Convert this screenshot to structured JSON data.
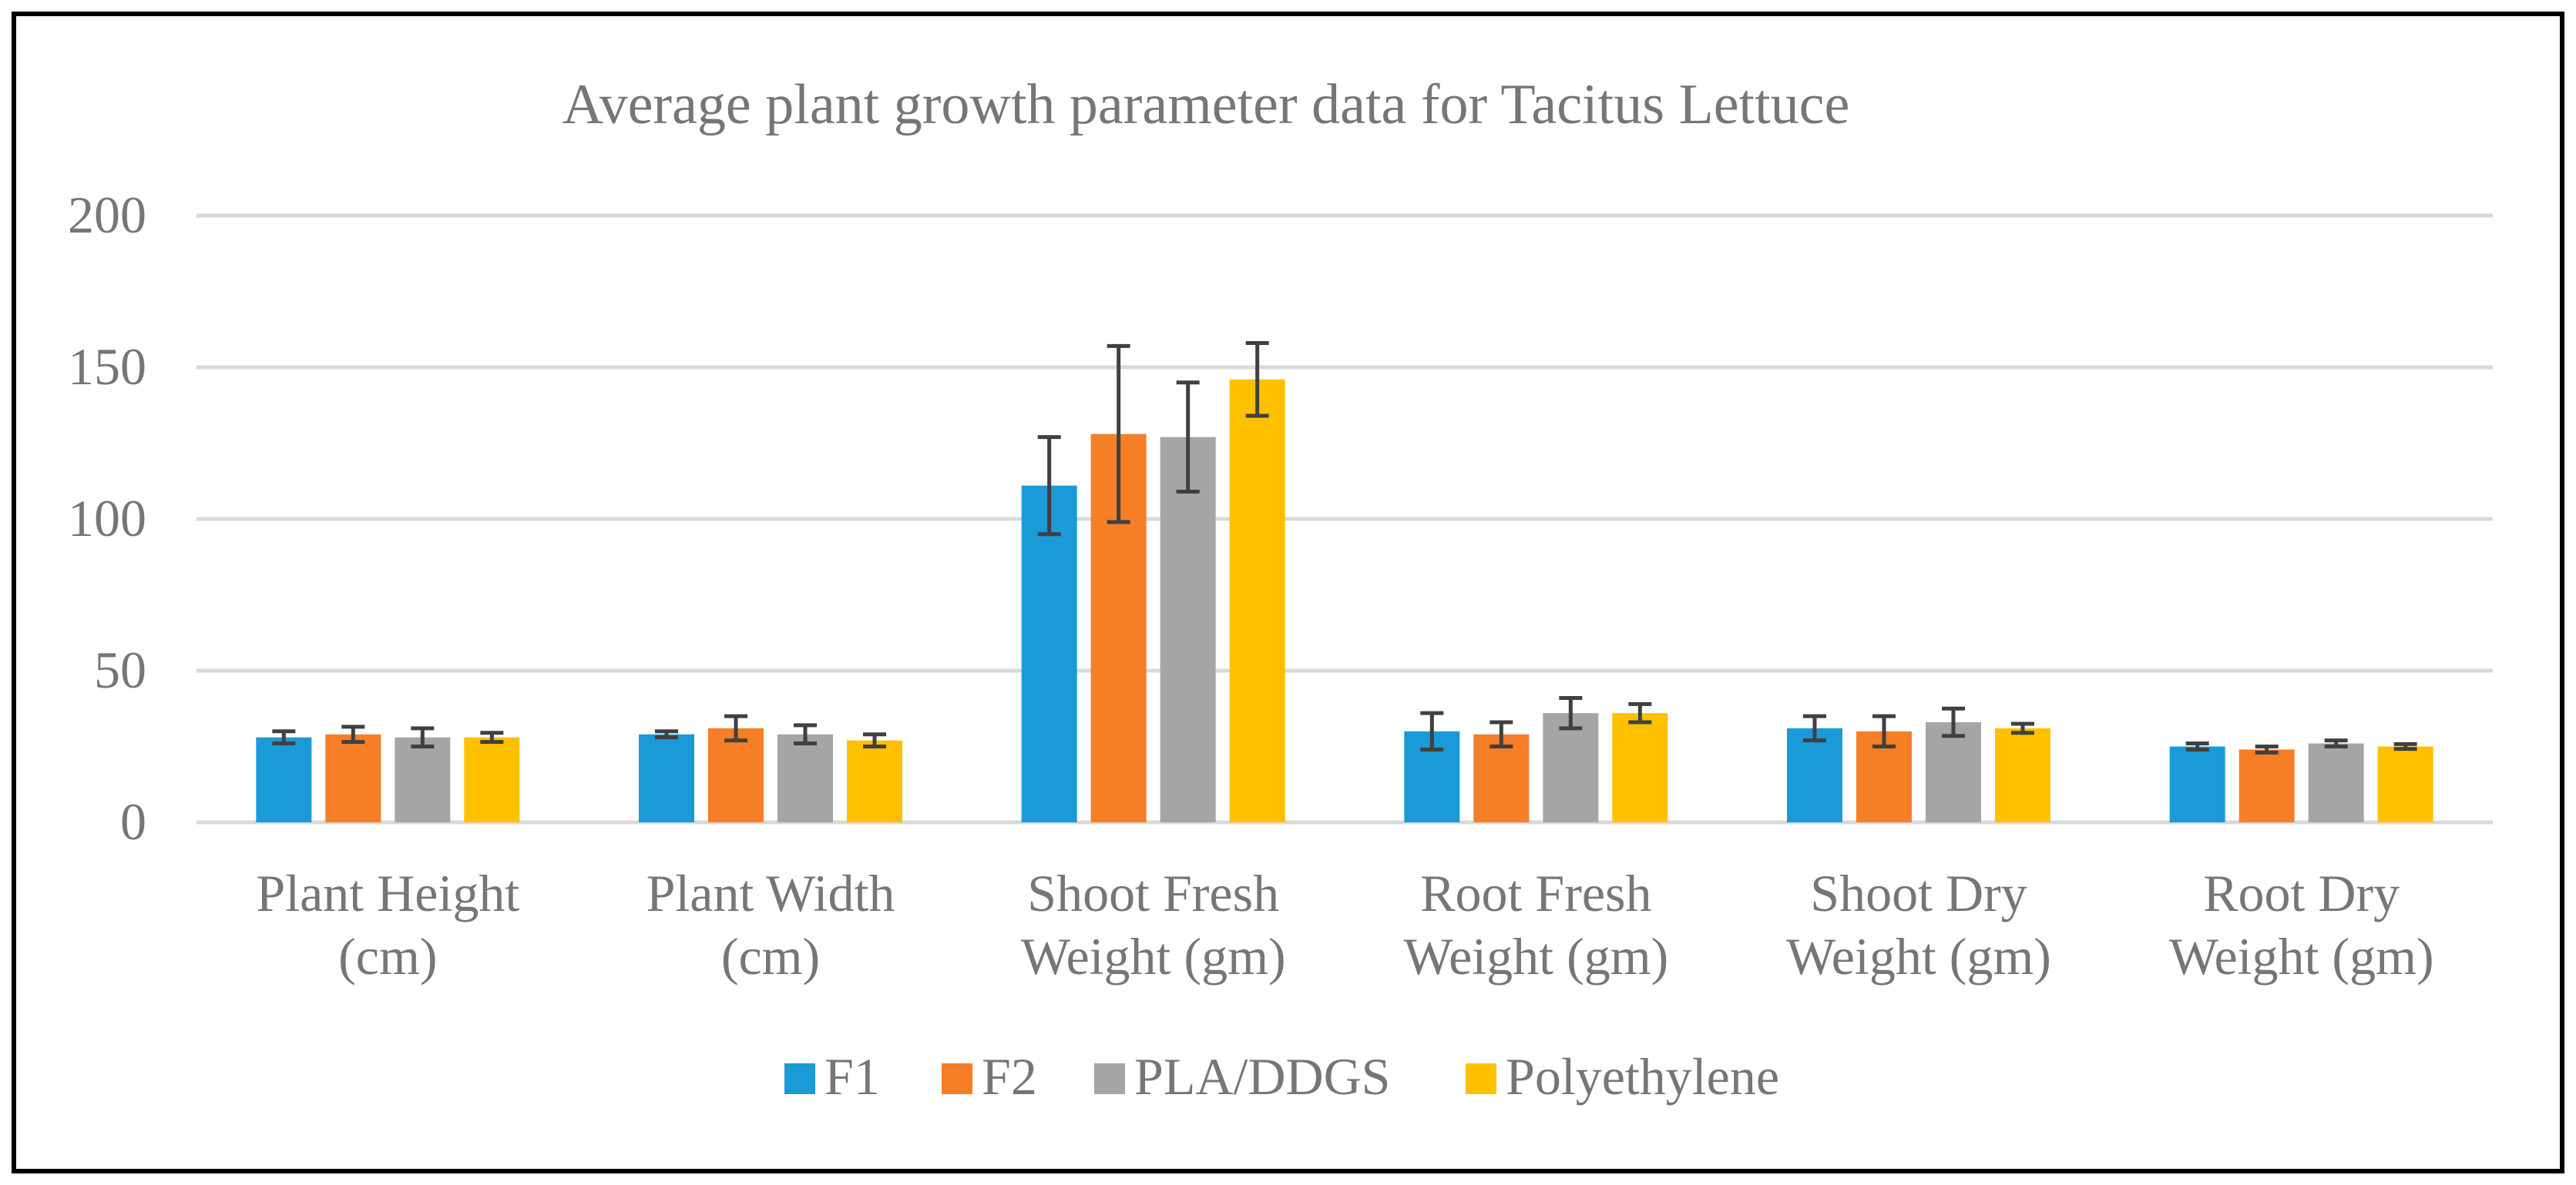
{
  "chart_data": {
    "type": "bar",
    "title": "Average plant growth parameter data for Tacitus Lettuce",
    "xlabel": "",
    "ylabel": "",
    "ylim": [
      0,
      200
    ],
    "yticks": [
      0,
      50,
      100,
      150,
      200
    ],
    "grid": true,
    "legend_position": "bottom",
    "categories": [
      [
        "Plant Height",
        "(cm)"
      ],
      [
        "Plant Width",
        "(cm)"
      ],
      [
        "Shoot Fresh",
        "Weight (gm)"
      ],
      [
        "Root Fresh",
        "Weight (gm)"
      ],
      [
        "Shoot Dry",
        "Weight (gm)"
      ],
      [
        "Root Dry",
        "Weight (gm)"
      ]
    ],
    "series": [
      {
        "name": "F1",
        "color": "#1A9AD6",
        "values": [
          28,
          29,
          111,
          30,
          31,
          25
        ],
        "errors": [
          2,
          1,
          16,
          6,
          4,
          1
        ]
      },
      {
        "name": "F2",
        "color": "#F57E27",
        "values": [
          29,
          31,
          128,
          29,
          30,
          24
        ],
        "errors": [
          2.5,
          4,
          29,
          4,
          5,
          1
        ]
      },
      {
        "name": "PLA/DDGS",
        "color": "#A5A5A5",
        "values": [
          28,
          29,
          127,
          36,
          33,
          26
        ],
        "errors": [
          3,
          3,
          18,
          5,
          4.5,
          1
        ]
      },
      {
        "name": "Polyethylene",
        "color": "#FFC000",
        "values": [
          28,
          27,
          146,
          36,
          31,
          25
        ],
        "errors": [
          1.5,
          2,
          12,
          3,
          1.5,
          0.8
        ]
      }
    ]
  }
}
